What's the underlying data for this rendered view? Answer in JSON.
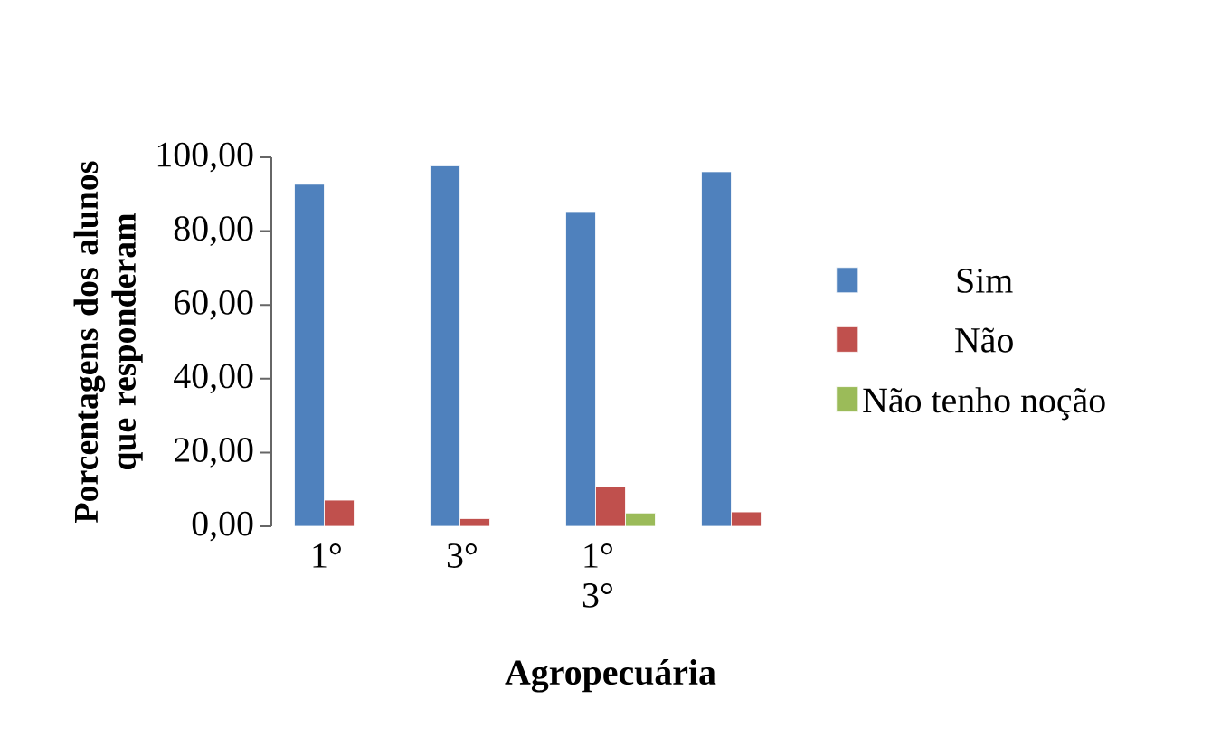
{
  "chart_data": {
    "type": "bar",
    "categories": [
      "1°",
      "3°",
      "1° 3°",
      null
    ],
    "xlabel": "Agropecuária",
    "ylabel": "Porcentagens dos alunos que responderam",
    "series": [
      {
        "name": "Sim",
        "color": "#4f81bd",
        "values": [
          92.7,
          97.7,
          85.3,
          96.1
        ]
      },
      {
        "name": "Não",
        "color": "#c0504d",
        "values": [
          7.1,
          2.1,
          10.7,
          3.9
        ]
      },
      {
        "name": "Não tenho noção",
        "color": "#9bbb59",
        "values": [
          0,
          0,
          3.6,
          0
        ]
      }
    ],
    "ylim": [
      0,
      100
    ],
    "yticks": [
      {
        "value": 0,
        "label": "0,00"
      },
      {
        "value": 20,
        "label": "20,00"
      },
      {
        "value": 40,
        "label": "40,00"
      },
      {
        "value": 60,
        "label": "60,00"
      },
      {
        "value": 80,
        "label": "80,00"
      },
      {
        "value": 100,
        "label": "100,00"
      }
    ],
    "legend": "right"
  }
}
